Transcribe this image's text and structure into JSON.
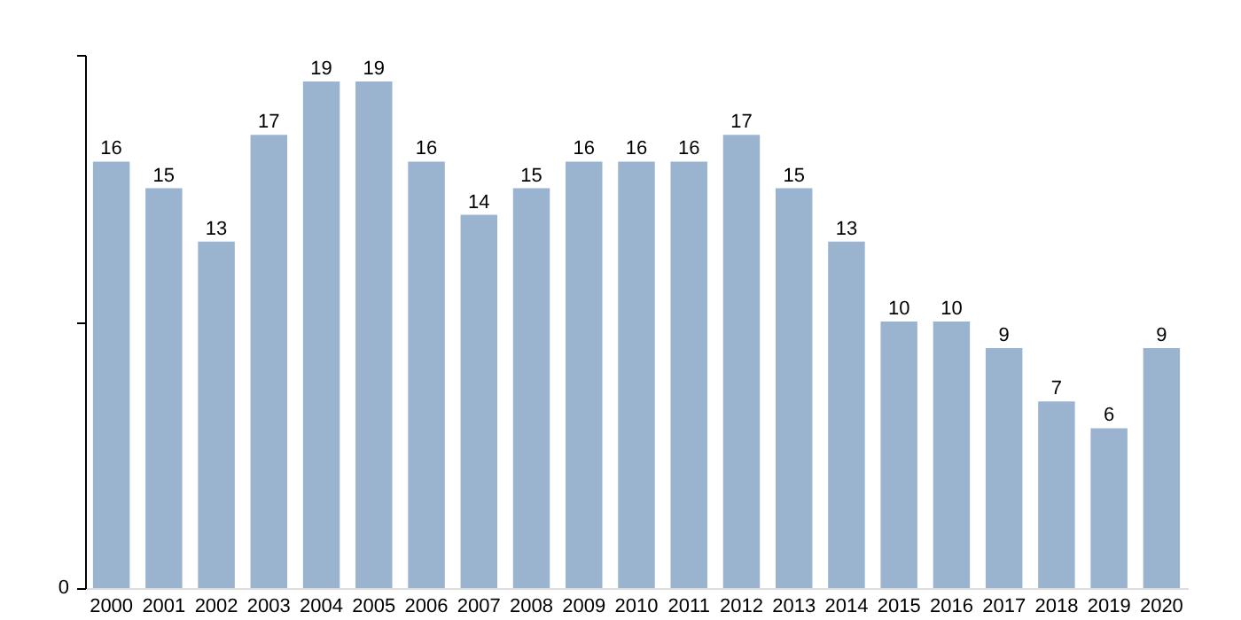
{
  "chart_data": {
    "type": "bar",
    "categories": [
      "2000",
      "2001",
      "2002",
      "2003",
      "2004",
      "2005",
      "2006",
      "2007",
      "2008",
      "2009",
      "2010",
      "2011",
      "2012",
      "2013",
      "2014",
      "2015",
      "2016",
      "2017",
      "2018",
      "2019",
      "2020"
    ],
    "values": [
      16,
      15,
      13,
      17,
      19,
      19,
      16,
      14,
      15,
      16,
      16,
      16,
      17,
      15,
      13,
      10,
      10,
      9,
      7,
      6,
      9
    ],
    "color": "#9ab3cf",
    "ylim": [
      0,
      20
    ],
    "data_labels": true,
    "annotations": [
      "0"
    ]
  }
}
